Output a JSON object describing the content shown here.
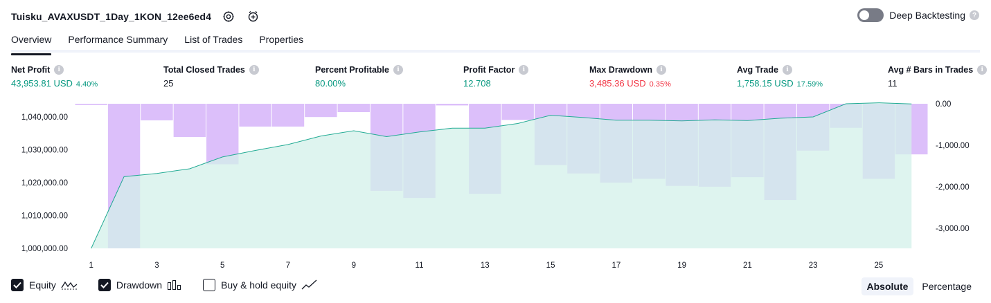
{
  "header": {
    "strategy_title": "Tuisku_AVAXUSDT_1Day_1KON_12ee6ed4",
    "deep_backtesting_label": "Deep Backtesting",
    "help_glyph": "?"
  },
  "tabs": [
    {
      "label": "Overview",
      "active": true
    },
    {
      "label": "Performance Summary",
      "active": false
    },
    {
      "label": "List of Trades",
      "active": false
    },
    {
      "label": "Properties",
      "active": false
    }
  ],
  "metrics": [
    {
      "label": "Net Profit",
      "value": "43,953.81 USD",
      "pct": "4.40%",
      "color": "green"
    },
    {
      "label": "Total Closed Trades",
      "value": "25",
      "pct": "",
      "color": "neutral"
    },
    {
      "label": "Percent Profitable",
      "value": "80.00%",
      "pct": "",
      "color": "green"
    },
    {
      "label": "Profit Factor",
      "value": "12.708",
      "pct": "",
      "color": "green"
    },
    {
      "label": "Max Drawdown",
      "value": "3,485.36 USD",
      "pct": "0.35%",
      "color": "red"
    },
    {
      "label": "Avg Trade",
      "value": "1,758.15 USD",
      "pct": "17.59%",
      "color": "green"
    },
    {
      "label": "Avg # Bars in Trades",
      "value": "11",
      "pct": "",
      "color": "neutral"
    }
  ],
  "info_glyph": "i",
  "chart_data": {
    "type": "area",
    "x_tick_labels": [
      "1",
      "3",
      "5",
      "7",
      "9",
      "11",
      "13",
      "15",
      "17",
      "19",
      "21",
      "23",
      "25"
    ],
    "left_axis": {
      "ticks": [
        "1,040,000.00",
        "1,030,000.00",
        "1,020,000.00",
        "1,010,000.00",
        "1,000,000.00"
      ],
      "ylim": [
        1000000,
        1044000
      ]
    },
    "right_axis": {
      "ticks": [
        "0.00",
        "-1,000.00",
        "-2,000.00",
        "-3,000.00"
      ],
      "ylim": [
        -3485.36,
        0
      ]
    },
    "series": [
      {
        "name": "Equity",
        "x": [
          1,
          2,
          3,
          4,
          5,
          6,
          7,
          8,
          9,
          10,
          11,
          12,
          13,
          14,
          15,
          16,
          17,
          18,
          19,
          20,
          21,
          22,
          23,
          24,
          25,
          26
        ],
        "values": [
          1000000,
          1021800,
          1022800,
          1024200,
          1027800,
          1029800,
          1031600,
          1034200,
          1035800,
          1034000,
          1035400,
          1036600,
          1036600,
          1038000,
          1040500,
          1039800,
          1039000,
          1039000,
          1038800,
          1039100,
          1038900,
          1039600,
          1040000,
          1044000,
          1044300,
          1043953.81
        ]
      },
      {
        "name": "Drawdown",
        "x": [
          1,
          2,
          3,
          4,
          5,
          6,
          7,
          8,
          9,
          10,
          11,
          12,
          13,
          14,
          15,
          16,
          17,
          18,
          19,
          20,
          21,
          22,
          23,
          24,
          25,
          26
        ],
        "values": [
          -30,
          -3485.36,
          -400,
          -800,
          -1460,
          -550,
          -550,
          -320,
          -200,
          -2100,
          -2270,
          -40,
          -2170,
          -390,
          -1480,
          -1680,
          -1900,
          -1810,
          -1980,
          -2000,
          -1770,
          -2320,
          -1130,
          -580,
          -1810,
          -1220
        ]
      }
    ],
    "colors": {
      "equity_line": "#22ab94",
      "equity_fill": "#d3f0ea",
      "drawdown_bar": "#dcbffa"
    },
    "grid": false
  },
  "legend": [
    {
      "label": "Equity",
      "checked": true,
      "icon": "equity-wave-icon"
    },
    {
      "label": "Drawdown",
      "checked": true,
      "icon": "drawdown-bars-icon"
    },
    {
      "label": "Buy & hold equity",
      "checked": false,
      "icon": "buy-hold-line-icon"
    }
  ],
  "mode_switch": {
    "absolute_label": "Absolute",
    "percentage_label": "Percentage",
    "selected": "Absolute"
  }
}
